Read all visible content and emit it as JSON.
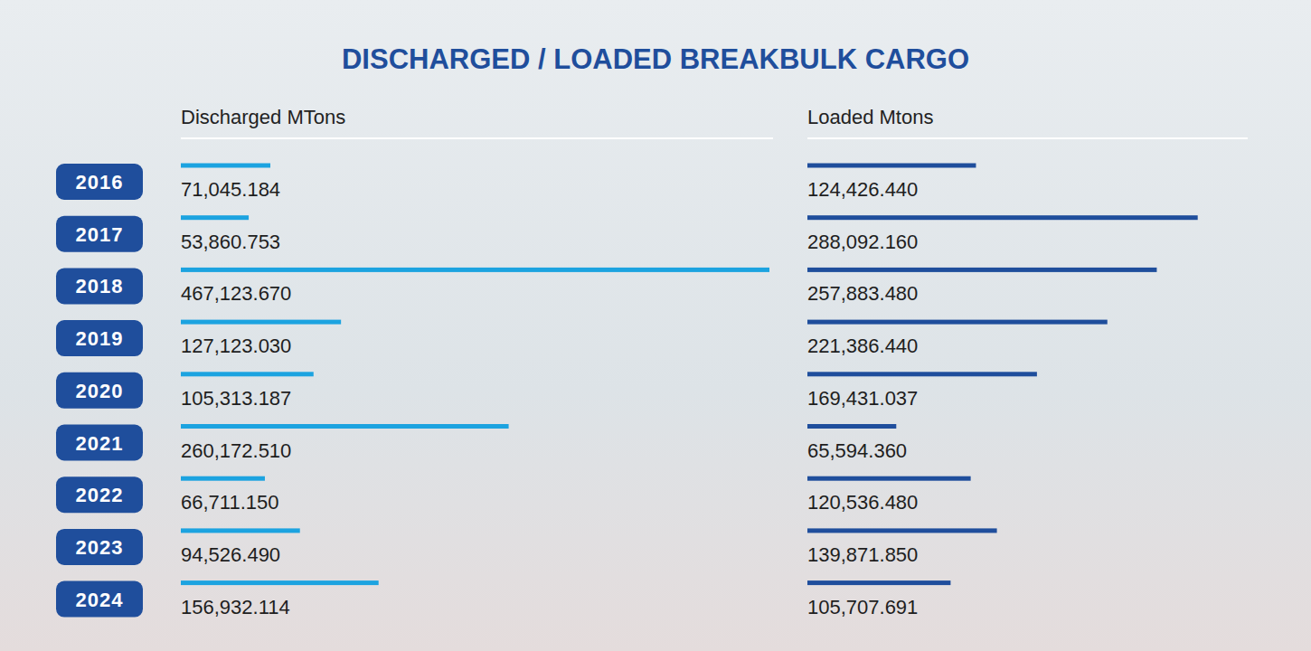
{
  "title": "DISCHARGED / LOADED BREAKBULK CARGO",
  "chart_data": [
    {
      "type": "bar",
      "orientation": "horizontal",
      "title": "Discharged MTons",
      "categories": [
        "2016",
        "2017",
        "2018",
        "2019",
        "2020",
        "2021",
        "2022",
        "2023",
        "2024"
      ],
      "values": [
        71045.184,
        53860.753,
        467123.67,
        127123.03,
        105313.187,
        260172.51,
        66711.15,
        94526.49,
        156932.114
      ],
      "value_labels": [
        "71,045.184",
        "53,860.753",
        "467,123.670",
        "127,123.030",
        "105,313.187",
        "260,172.510",
        "66,711.150",
        "94,526.490",
        "156,932.114"
      ],
      "color": "#1ca3e0",
      "xlim": [
        0,
        470000
      ],
      "data_labels": true,
      "tick_labels": "y"
    },
    {
      "type": "bar",
      "orientation": "horizontal",
      "title": "Loaded Mtons",
      "categories": [
        null,
        null,
        null,
        null,
        null,
        null,
        null,
        null,
        null
      ],
      "values": [
        124426.44,
        288092.16,
        257883.48,
        221386.44,
        169431.037,
        65594.36,
        120536.48,
        139871.85,
        105707.691
      ],
      "value_labels": [
        "124,426.440",
        "288,092.160",
        "257,883.480",
        "221,386.440",
        "169,431.037",
        "65,594.360",
        "120,536.480",
        "139,871.850",
        "105,707.691"
      ],
      "color": "#1f4e9c",
      "xlim": [
        0,
        325000
      ],
      "data_labels": true,
      "tick_labels": false
    }
  ]
}
